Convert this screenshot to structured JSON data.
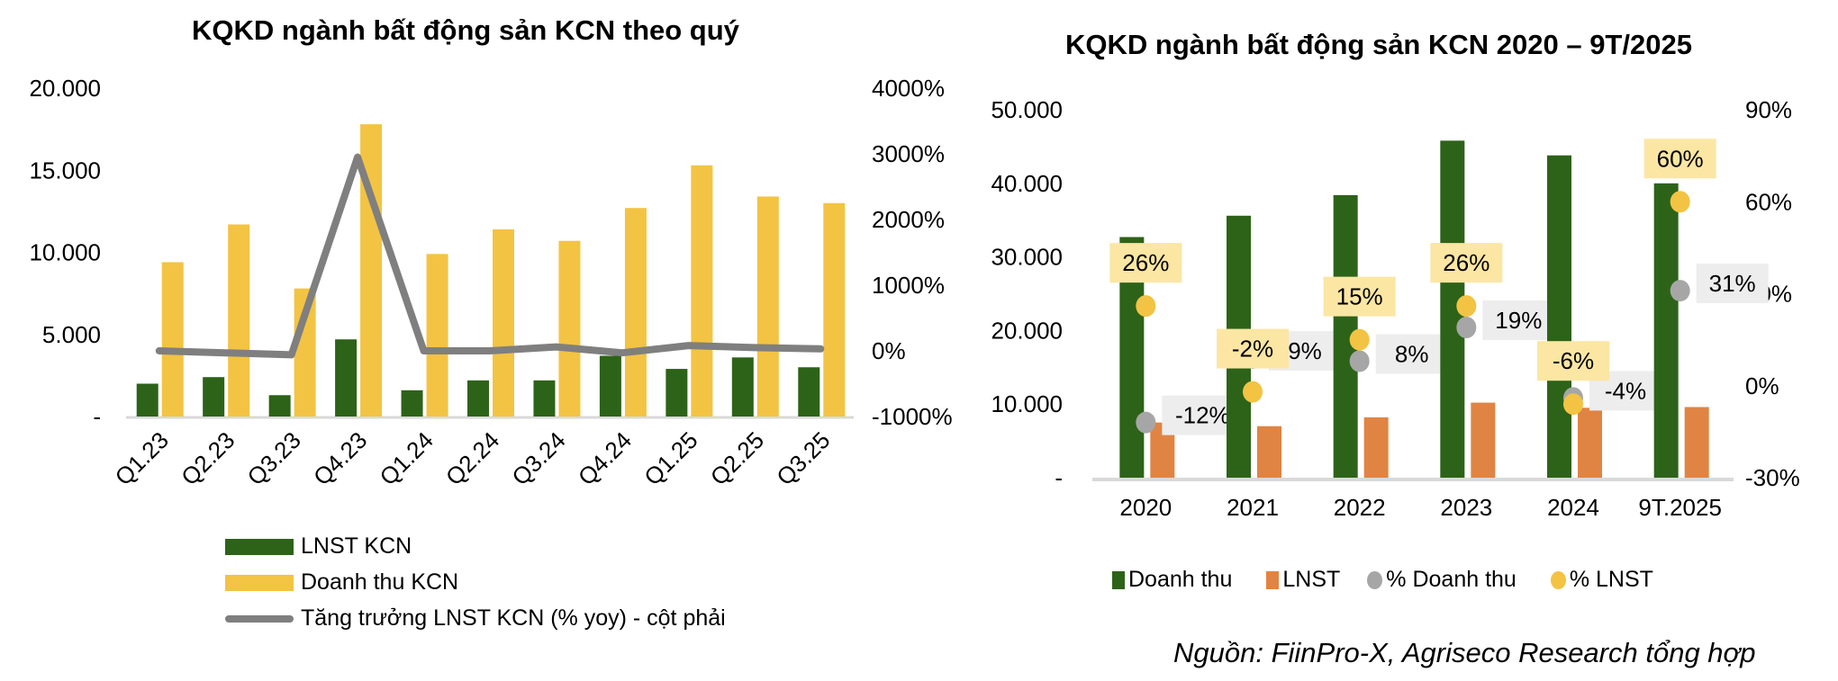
{
  "chart_data": [
    {
      "type": "bar",
      "title": "KQKD ngành bất động sản KCN theo quý",
      "categories": [
        "Q1.23",
        "Q2.23",
        "Q3.23",
        "Q4.23",
        "Q1.24",
        "Q2.24",
        "Q3.24",
        "Q4.24",
        "Q1.25",
        "Q2.25",
        "Q3.25"
      ],
      "series": [
        {
          "name": "LNST KCN",
          "type": "bar",
          "axis": "left",
          "color": "#2d6318",
          "values": [
            2000,
            2400,
            1300,
            4700,
            1600,
            2200,
            2200,
            3700,
            2900,
            3600,
            3000
          ]
        },
        {
          "name": "Doanh thu KCN",
          "type": "bar",
          "axis": "left",
          "color": "#f3c343",
          "values": [
            9400,
            11700,
            7800,
            17800,
            9900,
            11400,
            10700,
            12700,
            15300,
            13400,
            13000
          ]
        },
        {
          "name": "Tăng trưởng LNST KCN (% yoy) - cột phải",
          "type": "line",
          "axis": "right",
          "color": "#7f7f7f",
          "values": [
            0,
            -30,
            -60,
            2950,
            0,
            0,
            60,
            -30,
            80,
            50,
            30
          ]
        }
      ],
      "left_axis": {
        "ticks": [
          "-",
          "5.000",
          "10.000",
          "15.000",
          "20.000"
        ],
        "range": [
          0,
          20000
        ]
      },
      "right_axis": {
        "ticks": [
          "-1000%",
          "0%",
          "1000%",
          "2000%",
          "3000%",
          "4000%"
        ],
        "range": [
          -1000,
          4000
        ]
      },
      "legend_position": "bottom",
      "grid": false
    },
    {
      "type": "bar",
      "title": "KQKD ngành bất động sản KCN 2020 – 9T/2025",
      "categories": [
        "2020",
        "2021",
        "2022",
        "2023",
        "2024",
        "9T.2025"
      ],
      "series": [
        {
          "name": "Doanh thu",
          "type": "bar",
          "axis": "left",
          "color": "#2d6318",
          "values": [
            32700,
            35600,
            38400,
            45800,
            43800,
            40000
          ]
        },
        {
          "name": "LNST",
          "type": "bar",
          "axis": "left",
          "color": "#e08443",
          "values": [
            7500,
            7000,
            8200,
            10200,
            9500,
            9600
          ]
        },
        {
          "name": "% Doanh thu",
          "type": "scatter",
          "axis": "right",
          "color": "#a6a6a6",
          "values": [
            -12,
            9,
            8,
            19,
            -4,
            31
          ],
          "labels": [
            "-12%",
            "9%",
            "8%",
            "19%",
            "-4%",
            "31%"
          ]
        },
        {
          "name": "% LNST",
          "type": "scatter",
          "axis": "right",
          "color": "#f3c343",
          "values": [
            26,
            -2,
            15,
            26,
            -6,
            60
          ],
          "labels": [
            "26%",
            "-2%",
            "15%",
            "26%",
            "-6%",
            "60%"
          ]
        }
      ],
      "left_axis": {
        "ticks": [
          "-",
          "10.000",
          "20.000",
          "30.000",
          "40.000",
          "50.000"
        ],
        "range": [
          0,
          50000
        ]
      },
      "right_axis": {
        "ticks": [
          "-30%",
          "0%",
          "30%",
          "60%",
          "90%"
        ],
        "range": [
          -30,
          90
        ]
      },
      "legend_position": "bottom",
      "grid": false
    }
  ],
  "left": {
    "title": "KQKD ngành bất động sản KCN theo quý",
    "legend": [
      "LNST KCN",
      "Doanh thu KCN",
      "Tăng trưởng LNST KCN (% yoy) - cột phải"
    ]
  },
  "right": {
    "title": "KQKD ngành bất động sản KCN 2020 – 9T/2025",
    "legend": [
      "Doanh thu",
      "LNST",
      "% Doanh thu",
      "% LNST"
    ]
  },
  "source": "Nguồn: FiinPro-X, Agriseco Research tổng hợp"
}
